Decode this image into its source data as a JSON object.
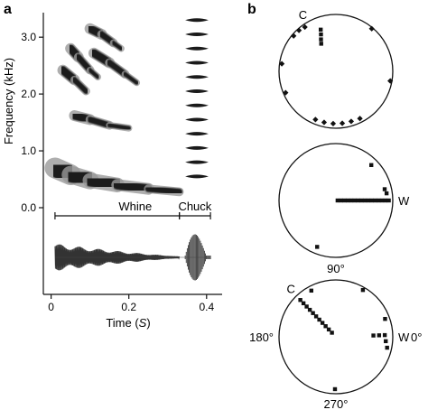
{
  "panel_labels": {
    "a": "a",
    "b": "b"
  },
  "colors": {
    "ink": "#111111",
    "spectrogram": "#1a1a1a",
    "spectrogram_halo": "#9a9a9a"
  },
  "chart_data": [
    {
      "type": "spectrogram",
      "panel": "a",
      "ylabel": "Frequency (kHz)",
      "xlabel": "Time (S)",
      "xlabel_main": "Time (",
      "xlabel_var": "S",
      "xlabel_close": ")",
      "ylim": [
        0.0,
        3.4
      ],
      "xlim": [
        -0.02,
        0.44
      ],
      "y_ticks": [
        "0.0",
        "1.0",
        "2.0",
        "3.0"
      ],
      "x_ticks": [
        "0",
        "0.2",
        "0.4"
      ],
      "segments": [
        {
          "label": "Whine",
          "start": 0.01,
          "end": 0.33
        },
        {
          "label": "Chuck",
          "start": 0.33,
          "end": 0.41
        }
      ],
      "traces": [
        {
          "name": "harmonic-1",
          "points": [
            [
              0.01,
              0.7
            ],
            [
              0.05,
              0.58
            ],
            [
              0.1,
              0.48
            ],
            [
              0.17,
              0.4
            ],
            [
              0.25,
              0.33
            ],
            [
              0.33,
              0.28
            ]
          ]
        },
        {
          "name": "harmonic-2",
          "points": [
            [
              0.06,
              1.62
            ],
            [
              0.1,
              1.55
            ],
            [
              0.15,
              1.45
            ],
            [
              0.2,
              1.4
            ]
          ]
        },
        {
          "name": "harmonic-3",
          "points": [
            [
              0.03,
              2.42
            ],
            [
              0.06,
              2.25
            ],
            [
              0.09,
              2.05
            ]
          ]
        },
        {
          "name": "harmonic-4",
          "points": [
            [
              0.05,
              2.8
            ],
            [
              0.07,
              2.65
            ],
            [
              0.1,
              2.42
            ],
            [
              0.12,
              2.3
            ]
          ]
        },
        {
          "name": "harmonic-5",
          "points": [
            [
              0.11,
              2.72
            ],
            [
              0.15,
              2.55
            ],
            [
              0.19,
              2.35
            ],
            [
              0.22,
              2.2
            ]
          ]
        },
        {
          "name": "harmonic-6",
          "points": [
            [
              0.1,
              3.15
            ],
            [
              0.13,
              3.05
            ],
            [
              0.16,
              2.9
            ],
            [
              0.18,
              2.8
            ]
          ]
        }
      ],
      "chuck_bands_khz": [
        3.3,
        3.05,
        2.8,
        2.55,
        2.3,
        2.05,
        1.8,
        1.55,
        1.3,
        1.05,
        0.8,
        0.55
      ]
    },
    {
      "type": "polar-scatter",
      "panel": "b",
      "plots": [
        {
          "name": "top",
          "labels": [
            {
              "text": "C",
              "angle_deg": 120
            }
          ],
          "points": [
            {
              "angle_deg": 118,
              "r": 0.55,
              "marker": "square"
            },
            {
              "angle_deg": 115,
              "r": 0.62,
              "marker": "square"
            },
            {
              "angle_deg": 112,
              "r": 0.7,
              "marker": "square"
            },
            {
              "angle_deg": 110,
              "r": 0.78,
              "marker": "square"
            },
            {
              "angle_deg": 125,
              "r": 0.95,
              "marker": "diamond"
            },
            {
              "angle_deg": 132,
              "r": 0.97,
              "marker": "diamond"
            },
            {
              "angle_deg": 140,
              "r": 0.97,
              "marker": "diamond"
            },
            {
              "angle_deg": 50,
              "r": 0.98,
              "marker": "diamond"
            },
            {
              "angle_deg": 172,
              "r": 0.96,
              "marker": "diamond"
            },
            {
              "angle_deg": 203,
              "r": 0.96,
              "marker": "diamond"
            },
            {
              "angle_deg": 350,
              "r": 0.97,
              "marker": "diamond"
            },
            {
              "angle_deg": 247,
              "r": 0.92,
              "marker": "diamond"
            },
            {
              "angle_deg": 257,
              "r": 0.92,
              "marker": "diamond"
            },
            {
              "angle_deg": 267,
              "r": 0.92,
              "marker": "diamond"
            },
            {
              "angle_deg": 277,
              "r": 0.92,
              "marker": "diamond"
            },
            {
              "angle_deg": 287,
              "r": 0.92,
              "marker": "diamond"
            },
            {
              "angle_deg": 297,
              "r": 0.93,
              "marker": "diamond"
            }
          ]
        },
        {
          "name": "middle",
          "labels": [
            {
              "text": "W",
              "angle_deg": 0
            }
          ],
          "points": [
            {
              "angle_deg": 0,
              "r": 0.03,
              "marker": "square"
            },
            {
              "angle_deg": 0,
              "r": 0.09,
              "marker": "square"
            },
            {
              "angle_deg": 0,
              "r": 0.15,
              "marker": "square"
            },
            {
              "angle_deg": 0,
              "r": 0.21,
              "marker": "square"
            },
            {
              "angle_deg": 0,
              "r": 0.27,
              "marker": "square"
            },
            {
              "angle_deg": 0,
              "r": 0.33,
              "marker": "square"
            },
            {
              "angle_deg": 0,
              "r": 0.39,
              "marker": "square"
            },
            {
              "angle_deg": 0,
              "r": 0.45,
              "marker": "square"
            },
            {
              "angle_deg": 0,
              "r": 0.51,
              "marker": "square"
            },
            {
              "angle_deg": 0,
              "r": 0.57,
              "marker": "square"
            },
            {
              "angle_deg": 0,
              "r": 0.63,
              "marker": "square"
            },
            {
              "angle_deg": 0,
              "r": 0.69,
              "marker": "square"
            },
            {
              "angle_deg": 0,
              "r": 0.75,
              "marker": "square"
            },
            {
              "angle_deg": 0,
              "r": 0.81,
              "marker": "square"
            },
            {
              "angle_deg": 0,
              "r": 0.87,
              "marker": "square"
            },
            {
              "angle_deg": 0,
              "r": 0.93,
              "marker": "square"
            },
            {
              "angle_deg": 8,
              "r": 0.9,
              "marker": "square"
            },
            {
              "angle_deg": 13,
              "r": 0.88,
              "marker": "square"
            },
            {
              "angle_deg": 45,
              "r": 0.88,
              "marker": "square"
            },
            {
              "angle_deg": 248,
              "r": 0.88,
              "marker": "square"
            }
          ]
        },
        {
          "name": "bottom",
          "axis_labels": [
            "0°",
            "90°",
            "180°",
            "270°"
          ],
          "labels": [
            {
              "text": "C",
              "angle_deg": 133
            },
            {
              "text": "W",
              "angle_deg": 0
            }
          ],
          "points": [
            {
              "angle_deg": 134,
              "r": 0.1,
              "marker": "square"
            },
            {
              "angle_deg": 134,
              "r": 0.18,
              "marker": "square"
            },
            {
              "angle_deg": 134,
              "r": 0.26,
              "marker": "square"
            },
            {
              "angle_deg": 134,
              "r": 0.34,
              "marker": "square"
            },
            {
              "angle_deg": 134,
              "r": 0.42,
              "marker": "square"
            },
            {
              "angle_deg": 134,
              "r": 0.5,
              "marker": "square"
            },
            {
              "angle_deg": 134,
              "r": 0.58,
              "marker": "square"
            },
            {
              "angle_deg": 134,
              "r": 0.66,
              "marker": "square"
            },
            {
              "angle_deg": 134,
              "r": 0.74,
              "marker": "square"
            },
            {
              "angle_deg": 134,
              "r": 0.82,
              "marker": "square"
            },
            {
              "angle_deg": 134,
              "r": 0.9,
              "marker": "square"
            },
            {
              "angle_deg": 118,
              "r": 0.92,
              "marker": "square"
            },
            {
              "angle_deg": 60,
              "r": 0.95,
              "marker": "square"
            },
            {
              "angle_deg": 2,
              "r": 0.66,
              "marker": "square"
            },
            {
              "angle_deg": 2,
              "r": 0.76,
              "marker": "square"
            },
            {
              "angle_deg": 2,
              "r": 0.86,
              "marker": "square"
            },
            {
              "angle_deg": 355,
              "r": 0.88,
              "marker": "square"
            },
            {
              "angle_deg": 20,
              "r": 0.92,
              "marker": "square"
            },
            {
              "angle_deg": 348,
              "r": 0.92,
              "marker": "square"
            },
            {
              "angle_deg": 269,
              "r": 0.92,
              "marker": "square"
            }
          ]
        }
      ]
    }
  ]
}
